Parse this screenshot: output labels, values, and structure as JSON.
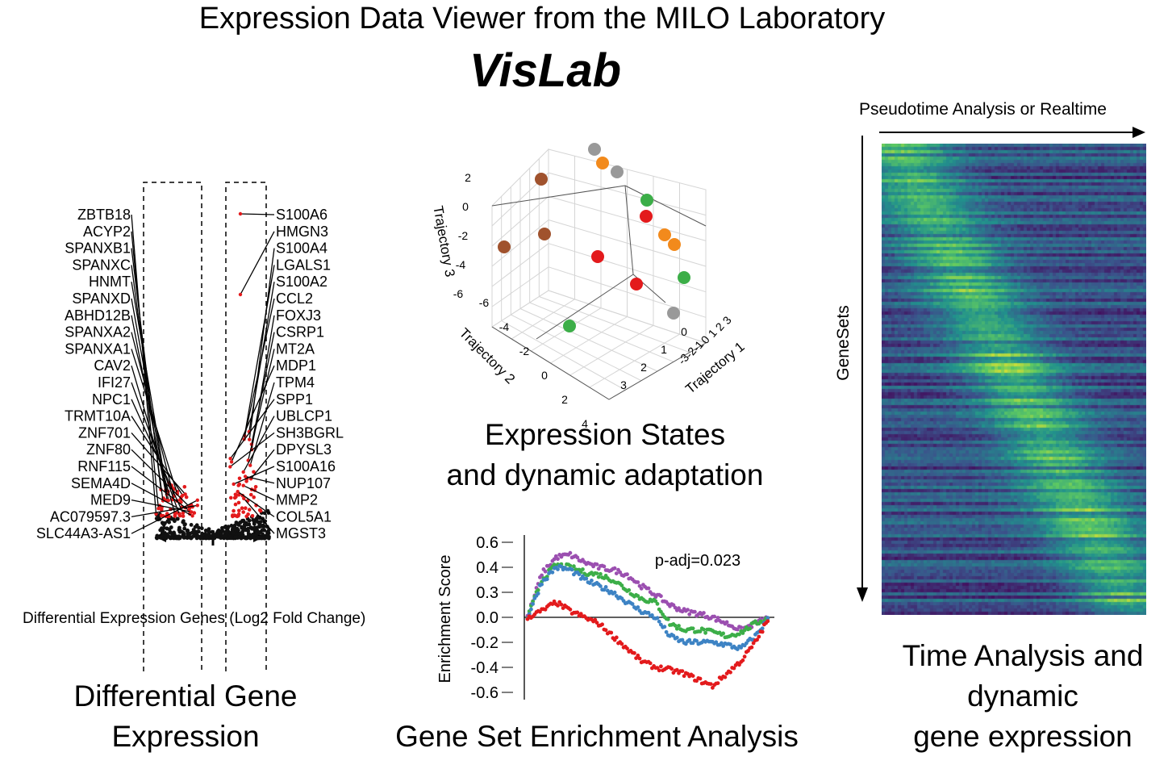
{
  "header": {
    "title": "Expression Data Viewer from the MILO Laboratory",
    "subtitle": "VisLab"
  },
  "panels": {
    "differential": {
      "caption_line1": "Differential Gene",
      "caption_line2": "Expression",
      "axis_label": "Differential Expression Genes (Log2 Fold Change)",
      "down_genes": [
        "ZBTB18",
        "ACYP2",
        "SPANXB1",
        "SPANXC",
        "HNMT",
        "SPANXD",
        "ABHD12B",
        "SPANXA2",
        "SPANXA1",
        "CAV2",
        "IFI27",
        "NPC1",
        "TRMT10A",
        "ZNF701",
        "ZNF80",
        "RNF115",
        "SEMA4D",
        "MED9",
        "AC079597.3",
        "SLC44A3-AS1"
      ],
      "up_genes": [
        "S100A6",
        "HMGN3",
        "S100A4",
        "LGALS1",
        "S100A2",
        "CCL2",
        "FOXJ3",
        "CSRP1",
        "MT2A",
        "MDP1",
        "TPM4",
        "SPP1",
        "UBLCP1",
        "SH3BGRL",
        "DPYSL3",
        "S100A16",
        "NUP107",
        "MMP2",
        "COL5A1",
        "MGST3"
      ]
    },
    "states": {
      "caption_line1": "Expression States",
      "caption_line2": "and dynamic adaptation",
      "axis1_label": "Trajectory 1",
      "axis2_label": "Trajectory 2",
      "axis3_label": "Trajectory 3",
      "axis1_ticks": [
        "3",
        "2",
        "1",
        "0",
        "-1",
        "-2",
        "-3"
      ],
      "axis2_ticks": [
        "-6",
        "-4",
        "-2",
        "0",
        "2",
        "4"
      ],
      "axis3_ticks": [
        "2",
        "0",
        "-2",
        "-4",
        "-6"
      ],
      "axis1_ticks_front": [
        "3",
        "2",
        "1",
        "0"
      ],
      "colors": {
        "grey": "#999999",
        "orange": "#f28a1c",
        "brown": "#a0522d",
        "green": "#3cae48",
        "red": "#e31a1c"
      }
    },
    "gsea": {
      "caption": "Gene Set Enrichment Analysis",
      "ylabel": "Enrichment Score",
      "annotation": "p-adj=0.023",
      "ylim": [
        -0.6,
        0.6
      ],
      "colors": {
        "purple": "#9b4fb0",
        "green": "#3cae48",
        "blue": "#3d83c4",
        "red": "#e31a1c"
      }
    },
    "time": {
      "caption_line1": "Time Analysis and",
      "caption_line2": "dynamic",
      "caption_line3": "gene expression",
      "top_label": "Pseudotime Analysis or Realtime",
      "side_label": "GeneSets"
    }
  },
  "chart_data": [
    {
      "type": "scatter",
      "ylabel": "Enrichment Score",
      "ylim": [
        -0.6,
        0.6
      ],
      "yticks": [
        "0.6",
        "0.4",
        "0.3",
        "0.0",
        "-0.2",
        "-0.4",
        "-0.6"
      ],
      "series": [
        {
          "color": "#9b4fb0",
          "values": [
            0.0,
            0.35,
            0.48,
            0.5,
            0.44,
            0.4,
            0.38,
            0.34,
            0.25,
            0.18,
            0.1,
            0.05,
            0.03,
            0.0,
            -0.05,
            -0.1,
            -0.05,
            0.0
          ]
        },
        {
          "color": "#3cae48",
          "values": [
            0.0,
            0.3,
            0.42,
            0.4,
            0.36,
            0.34,
            0.3,
            0.22,
            0.15,
            0.12,
            -0.05,
            -0.1,
            -0.1,
            -0.12,
            -0.15,
            -0.12,
            -0.05,
            0.0
          ]
        },
        {
          "color": "#3d83c4",
          "values": [
            0.0,
            0.28,
            0.4,
            0.38,
            0.3,
            0.25,
            0.2,
            0.12,
            0.05,
            0.0,
            -0.15,
            -0.2,
            -0.2,
            -0.2,
            -0.22,
            -0.25,
            -0.15,
            0.0
          ]
        },
        {
          "color": "#e31a1c",
          "values": [
            0.0,
            0.05,
            0.12,
            0.05,
            0.0,
            -0.05,
            -0.15,
            -0.25,
            -0.35,
            -0.4,
            -0.42,
            -0.45,
            -0.5,
            -0.55,
            -0.45,
            -0.35,
            -0.2,
            0.0
          ]
        }
      ]
    }
  ]
}
